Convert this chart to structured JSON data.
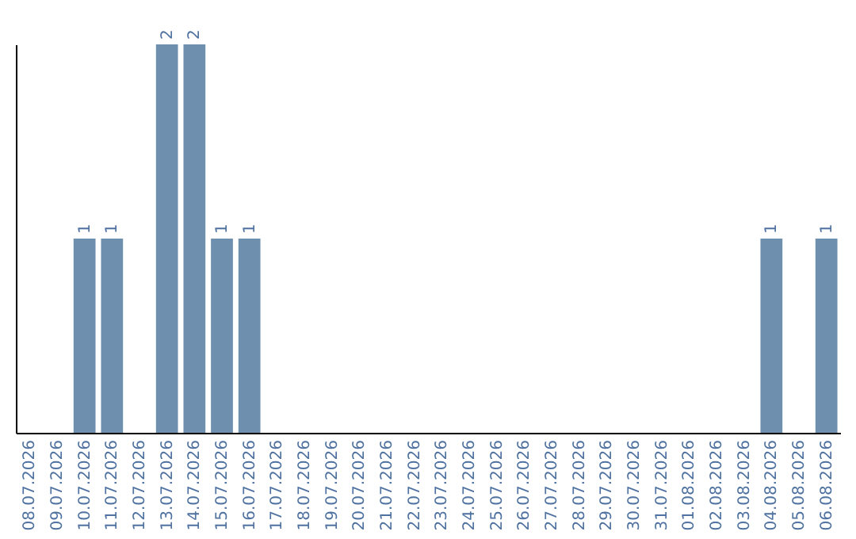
{
  "chart_data": {
    "type": "bar",
    "categories": [
      "08.07.2026",
      "09.07.2026",
      "10.07.2026",
      "11.07.2026",
      "12.07.2026",
      "13.07.2026",
      "14.07.2026",
      "15.07.2026",
      "16.07.2026",
      "17.07.2026",
      "18.07.2026",
      "19.07.2026",
      "20.07.2026",
      "21.07.2026",
      "22.07.2026",
      "23.07.2026",
      "24.07.2026",
      "25.07.2026",
      "26.07.2026",
      "27.07.2026",
      "28.07.2026",
      "29.07.2026",
      "30.07.2026",
      "31.07.2026",
      "01.08.2026",
      "02.08.2026",
      "03.08.2026",
      "04.08.2026",
      "05.08.2026",
      "06.08.2026"
    ],
    "values": [
      0,
      0,
      1,
      1,
      0,
      2,
      2,
      1,
      1,
      0,
      0,
      0,
      0,
      0,
      0,
      0,
      0,
      0,
      0,
      0,
      0,
      0,
      0,
      0,
      0,
      0,
      0,
      1,
      0,
      1
    ],
    "value_labels": [
      null,
      null,
      "1",
      "1",
      null,
      "2",
      "2",
      "1",
      "1",
      null,
      null,
      null,
      null,
      null,
      null,
      null,
      null,
      null,
      null,
      null,
      null,
      null,
      null,
      null,
      null,
      null,
      null,
      "1",
      null,
      "1"
    ],
    "color": "#6e8fae",
    "ylim": [
      0,
      2
    ],
    "tick_labels": "x",
    "grid": false
  }
}
